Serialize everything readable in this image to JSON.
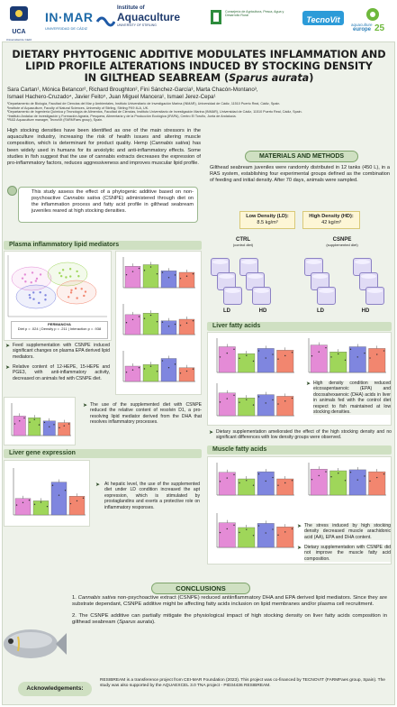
{
  "logos": {
    "uca": "UCA",
    "uca_sub": "Universidad de Cádiz",
    "inmar": "IN·MAR",
    "inmar_sub": "UNIVERSIDAD DE CÁDIZ",
    "ioa_top": "Institute of",
    "ioa_main": "Aquaculture",
    "ioa_sub": "UNIVERSITY OF STIRLING",
    "junta_text": "Consejería de Agricultura, Pesca, Agua y Desarrollo Rural",
    "tecnovit": "TecnoVit",
    "ae_top": "aquaculture",
    "ae_main": "europe",
    "ae_year": "25"
  },
  "title": {
    "line1": "DIETARY PHYTOGENIC ADDITIVE MODULATES INFLAMMATION AND",
    "line2": "LIPID PROFILE ALTERATIONS INDUCED BY STOCKING DENSITY",
    "line3": "IN GILTHEAD SEABREAM (",
    "line3_italic": "Sparus aurata",
    "line3_end": ")"
  },
  "authors": {
    "line1": "Sara Cartan¹, Mónica Betancor², Richard Broughton², Fini Sánchez-García³, Marta Chacón-Montano³,",
    "line2": "Ismael Hachero-Cruzado⁴, Javier Feito⁵, Juan Miguel Mancera¹, Ismael Jerez-Cepa¹"
  },
  "affiliations": [
    "¹Departamento de Biología, Facultad de Ciencias del Mar y Ambientales, Instituto Universitario de Investigación Marina (INMAR), Universidad de Cádiz, 11510 Puerto Real, Cádiz, Spain.",
    "²Institute of Aquaculture, Faculty of Natural Sciences, University of Stirling, Stirling FK9 4LA, UK.",
    "³Departamento de Ingeniería Química y Tecnología de Alimentos, Facultad de Ciencias, Instituto Universitario de Investigación Marina (INMAR), Universidad de Cádiz, 11510 Puerto Real, Cádiz, Spain.",
    "⁴Instituto Andaluz de Investigación y Formación Agraria, Pesquera, Alimentaria y de la Producción Ecológica (IFAPA), Centro El Toruño, Junta de Andalucía.",
    "⁵R&D Aquaculture manager, TecnoVit (FARMFaes group), Spain."
  ],
  "intro": {
    "text1": "High stocking densities have been identified as one of the main stressors in the aquaculture industry, increasing the risk of health issues and altering muscle composition, which is determinant for product quality. Hemp (",
    "italic": "Cannabis sativa",
    "text2": ") has been widely used in humans for its anxiolytic and anti-inflammatory effects. Some studies in fish suggest that the use of cannabis extracts decreases the expression of pro-inflammatory factors, reduces aggressiveness and improves muscular lipid profile."
  },
  "aim": {
    "text1": "This study assess the effect of a phytogenic additive based on non-psychoactive ",
    "italic": "Cannabis sativa",
    "text2": " (CSNPE) administered through diet on the inflammation process and fatty acid profile in gilthead seabream juveniles reared at high stocking densities."
  },
  "materials": {
    "heading": "MATERIALS AND METHODS",
    "text": "Gilthead seabream juveniles were randomly distributed in 12 tanks (450 L), in a RAS system, establishing four experimental groups defined as the combination of feeding and initial density. After 70 days, animals were sampled.",
    "ld_label": "Low Density (LD):",
    "ld_value": "8.5 kg/m³",
    "hd_label": "High Density (HD):",
    "hd_value": "42 kg/m³",
    "ctrl": "CTRL",
    "ctrl_sub": "(control diet)",
    "csnpe": "CSNPE",
    "csnpe_sub": "(supplemented diet)",
    "group_labels": [
      "LD",
      "HD",
      "LD",
      "HD"
    ]
  },
  "plasma": {
    "heading": "Plasma inflammatory lipid mediators",
    "legend": [
      "LD-CTRL",
      "HD-CTRL",
      "LD-CSNPE",
      "HD-CSNPE"
    ],
    "permanova_title": "PERMANOVA",
    "permanova_line": "Diet p = .024 | Density p = .211 | Interaction p = .938",
    "bullet1": "Feed supplementation with CSNPE induced significant changes on plasma EPA derived lipid mediators.",
    "bullet2": "Relative content of 12-HEPE, 15-HEPE and PGE3, with anti-inflammatory activity, decreased on animals fed with CSNPE diet.",
    "bullet3": "The use of the supplemented diet with CSNPE reduced the relative content of resolvin D1, a pro-resolving lipid mediator derived from the DHA that resolves inflammatory processes.",
    "y_labels": [
      "12-HEPE",
      "15-HEPE",
      "PGE3",
      "Resolvin D1"
    ]
  },
  "liver_genes": {
    "heading": "Liver gene expression",
    "bullet": "At hepatic level, the use of the supplemented diet under LD condition increased the apt expression, which is stimulated by prostaglandins and exerts a protective role on inflammatory responses."
  },
  "liver_fa": {
    "heading": "Liver fatty acids",
    "bullet1": "High density condition reduced eicosapentaenoic (EPA) and docosahexaenoic (DHA) acids in liver in animals fed with the control diet respect to fish maintained at low stocking densities.",
    "bullet2": "Dietary supplementation ameliorated the effect of the high stocking density and no significant differences with low density groups were observed.",
    "y_labels": [
      "20:5n-3 (EPA)",
      "22:6n-3 (DHA)",
      "20:4n-6 (ARA)"
    ]
  },
  "muscle_fa": {
    "heading": "Muscle fatty acids",
    "bullet1": "The stress induced by high stocking density decreased muscle arachidonic acid (AA), EPA and DHA content.",
    "bullet2": "Dietary supplementation with CSNPE did not improve the muscle fatty acid composition."
  },
  "axis_groups": [
    "LD\nCTRL",
    "HD\nCTRL",
    "LD\nCSNPE",
    "HD\nCSNPE"
  ],
  "conclusions": {
    "heading": "CONCLUSIONS",
    "c1_italic": "Cannabis sativa",
    "c1": " non-psychoactive extract (CSNPE) reduced antiinflammatory DHA and EPA derived lipid mediators. Since they are substrate dependant, CSNPE additive might be affecting fatty acids inclusion on lipid membranes and/or plasma cell recruitment.",
    "c2": "The CSNPE additive can partially mitigate the physiological impact of high stocking density on liver fatty acids composition in gilthead seabream (",
    "c2_italic": "Sparus aurata",
    "c2_end": ")."
  },
  "acknowledgements": {
    "heading": "Acknowledgements:",
    "text": "RESIBREAM is a transference project from CEI-MAR Foundation (2023). This project was co-financed by TECNOVIT (FARMFaes group, Spain). The study was also supported by the AQUAEXCEL 3.0 TNA project - PID34436 RESIBREAM."
  },
  "colors": {
    "ld_ctrl": "#e48bd6",
    "hd_ctrl": "#9fd65a",
    "ld_csnpe": "#7f86df",
    "hd_csnpe": "#f2866f",
    "section": "#cfe0c2",
    "tank": "#e0dbf5"
  }
}
